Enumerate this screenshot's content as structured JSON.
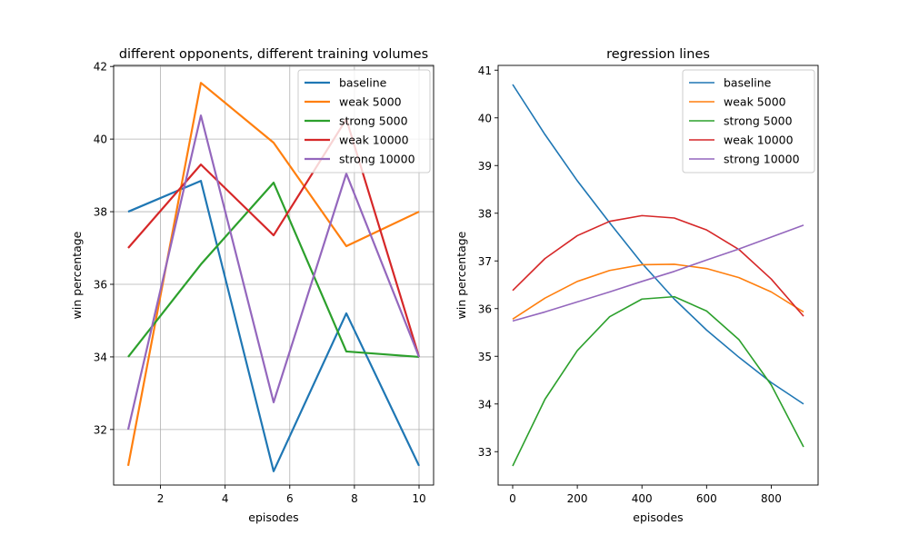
{
  "chart_data": [
    {
      "type": "line",
      "title": "different opponents, different training volumes",
      "xlabel": "episodes",
      "ylabel": "win percentage",
      "xlim": [
        0.55,
        10.45
      ],
      "ylim": [
        30.47,
        42.03
      ],
      "xticks": [
        2,
        4,
        6,
        8,
        10
      ],
      "yticks": [
        32,
        34,
        36,
        38,
        40,
        42
      ],
      "grid": true,
      "legend_position": "top-right",
      "x": [
        1.0,
        3.25,
        5.5,
        7.75,
        10.0
      ],
      "series": [
        {
          "name": "baseline",
          "color": "#1f77b4",
          "values": [
            38.0,
            38.85,
            30.85,
            35.2,
            31.0
          ]
        },
        {
          "name": "weak 5000",
          "color": "#ff7f0e",
          "values": [
            31.0,
            41.55,
            39.9,
            37.05,
            38.0
          ]
        },
        {
          "name": "strong 5000",
          "color": "#2ca02c",
          "values": [
            34.0,
            36.55,
            38.8,
            34.15,
            34.0
          ]
        },
        {
          "name": "weak 10000",
          "color": "#d62728",
          "values": [
            37.0,
            39.3,
            37.35,
            40.55,
            34.0
          ]
        },
        {
          "name": "strong 10000",
          "color": "#9467bd",
          "values": [
            32.0,
            40.65,
            32.75,
            39.05,
            34.0
          ]
        }
      ]
    },
    {
      "type": "line",
      "title": "regression lines",
      "xlabel": "episodes",
      "ylabel": "win percentage",
      "xlim": [
        -45,
        945
      ],
      "ylim": [
        32.3,
        41.1
      ],
      "xticks": [
        0,
        200,
        400,
        600,
        800
      ],
      "yticks": [
        33,
        34,
        35,
        36,
        37,
        38,
        39,
        40,
        41
      ],
      "grid": false,
      "legend_position": "top-right",
      "x": [
        0,
        100,
        200,
        300,
        400,
        500,
        600,
        700,
        800,
        900
      ],
      "series": [
        {
          "name": "baseline",
          "color": "#1f77b4",
          "values": [
            40.7,
            39.65,
            38.68,
            37.8,
            36.95,
            36.2,
            35.55,
            34.98,
            34.45,
            34.0
          ]
        },
        {
          "name": "weak 5000",
          "color": "#ff7f0e",
          "values": [
            35.78,
            36.22,
            36.57,
            36.8,
            36.92,
            36.93,
            36.84,
            36.65,
            36.35,
            35.93
          ]
        },
        {
          "name": "strong 5000",
          "color": "#2ca02c",
          "values": [
            32.7,
            34.1,
            35.12,
            35.83,
            36.2,
            36.25,
            35.95,
            35.35,
            34.4,
            33.1
          ]
        },
        {
          "name": "weak 10000",
          "color": "#d62728",
          "values": [
            36.38,
            37.05,
            37.53,
            37.83,
            37.95,
            37.9,
            37.65,
            37.24,
            36.62,
            35.84
          ]
        },
        {
          "name": "strong 10000",
          "color": "#9467bd",
          "values": [
            35.74,
            35.93,
            36.14,
            36.35,
            36.57,
            36.78,
            37.02,
            37.25,
            37.5,
            37.75
          ]
        }
      ]
    }
  ]
}
